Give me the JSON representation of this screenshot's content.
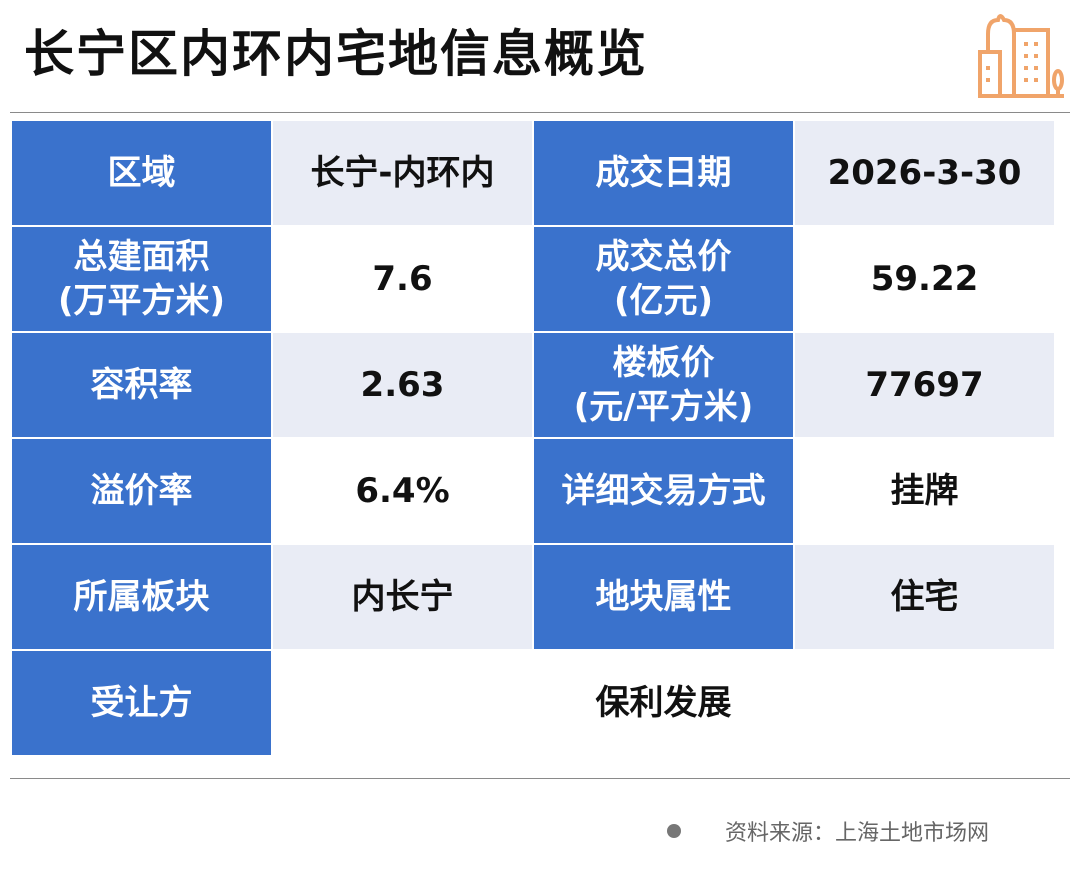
{
  "title": "长宁区内环内宅地信息概览",
  "logo_icon": "city-buildings-icon",
  "colors": {
    "header_cell": "#3a72cc",
    "alt_row": "#e9ecf5",
    "logo": "#f0a46a"
  },
  "rows": [
    {
      "l1": "区域",
      "v1": "长宁-内环内",
      "l2": "成交日期",
      "v2": "2026-3-30"
    },
    {
      "l1": "总建面积\n(万平方米)",
      "v1": "7.6",
      "l2": "成交总价\n(亿元)",
      "v2": "59.22"
    },
    {
      "l1": "容积率",
      "v1": "2.63",
      "l2": "楼板价\n(元/平方米)",
      "v2": "77697"
    },
    {
      "l1": "溢价率",
      "v1": "6.4%",
      "l2": "详细交易方式",
      "v2": "挂牌"
    },
    {
      "l1": "所属板块",
      "v1": "内长宁",
      "l2": "地块属性",
      "v2": "住宅"
    }
  ],
  "buyer": {
    "label": "受让方",
    "value": "保利发展"
  },
  "footer": {
    "source": "资料来源：上海土地市场网"
  }
}
